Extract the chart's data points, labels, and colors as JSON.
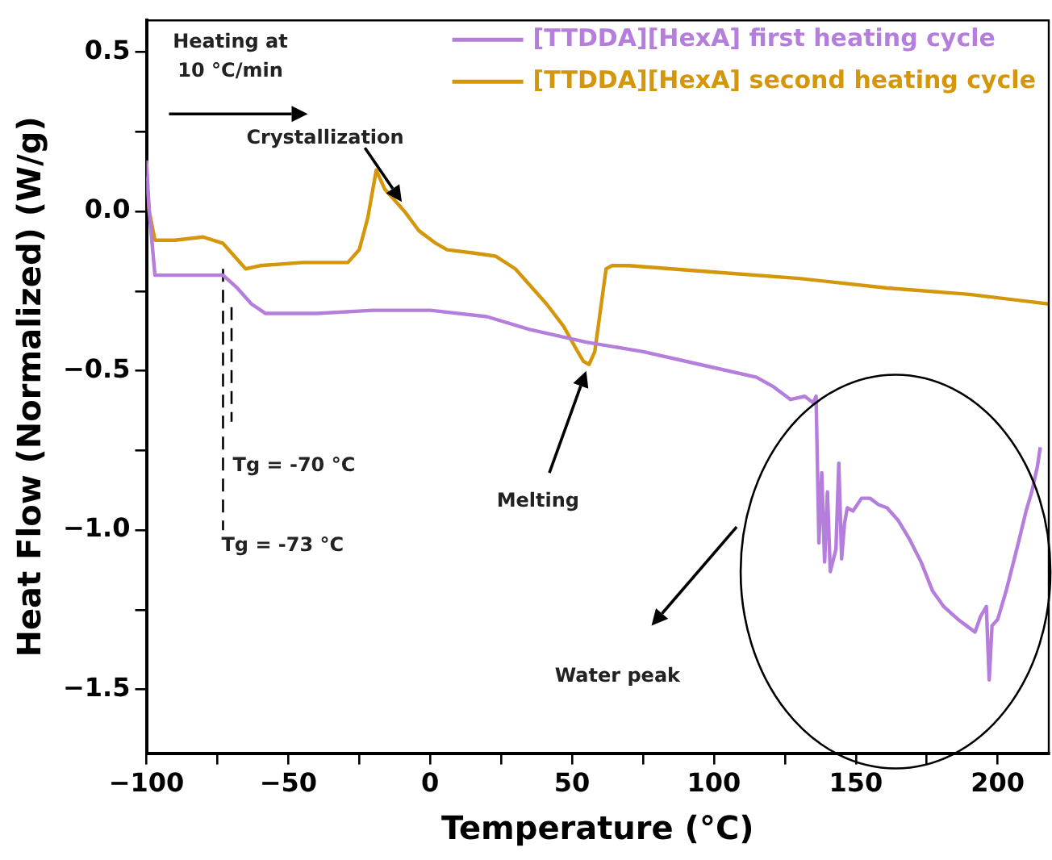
{
  "chart_data": {
    "type": "line",
    "xlabel": "Temperature (°C)",
    "ylabel": "Heat Flow (Normalized) (W/g)",
    "xlim": [
      -100,
      218
    ],
    "xticks": [
      {
        "value": -100,
        "label": "−100"
      },
      {
        "value": -75,
        "label": null
      },
      {
        "value": -50,
        "label": "−50"
      },
      {
        "value": -25,
        "label": null
      },
      0,
      {
        "value": 25,
        "label": null
      },
      50,
      {
        "value": 75,
        "label": null
      },
      100,
      {
        "value": 125,
        "label": null
      },
      150,
      {
        "value": 175,
        "label": null
      },
      200
    ],
    "ylim": [
      -1.7,
      0.6
    ],
    "yticks": [
      {
        "value": -1.5,
        "label": "−1.5"
      },
      {
        "value": -1.25,
        "label": null
      },
      {
        "value": -1,
        "label": "−1.0"
      },
      {
        "value": -0.75,
        "label": null
      },
      {
        "value": -0.5,
        "label": "−0.5"
      },
      {
        "value": -0.25,
        "label": null
      },
      {
        "value": 0,
        "label": "0.0"
      },
      {
        "value": 0.25,
        "label": null
      },
      {
        "value": 0.5,
        "label": "0.5"
      }
    ],
    "grid": false,
    "legend": "top right",
    "marker": "none",
    "series": [
      {
        "name": "[TTDDA][HexA] first heating cycle",
        "color": "#b57edc",
        "x": [
          -100,
          -99,
          -97,
          -85,
          -73,
          -68,
          -63,
          -58,
          -40,
          -20,
          0,
          20,
          35,
          55,
          75,
          95,
          115,
          121,
          127,
          132,
          135,
          136,
          137,
          138,
          139,
          140,
          141,
          143,
          144,
          145,
          146,
          147,
          149,
          152,
          155,
          158,
          161,
          165,
          169,
          173,
          177,
          181,
          186,
          189,
          192,
          194,
          196,
          197,
          198,
          200,
          203,
          207,
          210,
          212,
          214,
          215
        ],
        "values": [
          0.16,
          0.0,
          -0.2,
          -0.2,
          -0.2,
          -0.24,
          -0.29,
          -0.32,
          -0.32,
          -0.31,
          -0.31,
          -0.33,
          -0.37,
          -0.41,
          -0.44,
          -0.48,
          -0.52,
          -0.55,
          -0.59,
          -0.58,
          -0.6,
          -0.58,
          -1.04,
          -0.82,
          -1.1,
          -0.88,
          -1.13,
          -1.06,
          -0.79,
          -1.09,
          -0.98,
          -0.93,
          -0.94,
          -0.9,
          -0.9,
          -0.92,
          -0.93,
          -0.97,
          -1.03,
          -1.1,
          -1.19,
          -1.24,
          -1.28,
          -1.3,
          -1.32,
          -1.27,
          -1.24,
          -1.47,
          -1.3,
          -1.28,
          -1.19,
          -1.05,
          -0.94,
          -0.88,
          -0.8,
          -0.74
        ]
      },
      {
        "name": "[TTDDA][HexA] second heating cycle",
        "color": "#d4960a",
        "x": [
          -100,
          -99,
          -97,
          -90,
          -80,
          -73,
          -68,
          -65,
          -60,
          -45,
          -29,
          -25,
          -22,
          -19,
          -16,
          -12,
          -9,
          -4,
          2,
          6,
          15,
          23,
          30,
          41,
          47,
          52,
          54,
          56,
          58,
          60,
          62,
          64,
          70,
          100,
          130,
          161,
          190,
          218
        ],
        "values": [
          0.11,
          0.0,
          -0.09,
          -0.09,
          -0.08,
          -0.1,
          -0.15,
          -0.18,
          -0.17,
          -0.16,
          -0.16,
          -0.12,
          -0.02,
          0.13,
          0.07,
          0.03,
          0.0,
          -0.06,
          -0.1,
          -0.12,
          -0.13,
          -0.14,
          -0.18,
          -0.29,
          -0.36,
          -0.44,
          -0.47,
          -0.48,
          -0.44,
          -0.31,
          -0.18,
          -0.17,
          -0.17,
          -0.19,
          -0.21,
          -0.24,
          -0.26,
          -0.29
        ]
      },
      {
        "color": "#000000",
        "line_style": "dashed",
        "x": [
          -73,
          -73
        ],
        "values": [
          -0.18,
          -1.0
        ]
      },
      {
        "color": "#000000",
        "line_style": "dashed",
        "x": [
          -70,
          -70
        ],
        "values": [
          -0.3,
          -0.66
        ]
      }
    ],
    "annotations": [
      "Heating at\n10 °C/min",
      "Crystallization",
      "Melting",
      "Water peak",
      "Tg = -70 °C",
      "Tg = -73 °C"
    ]
  }
}
